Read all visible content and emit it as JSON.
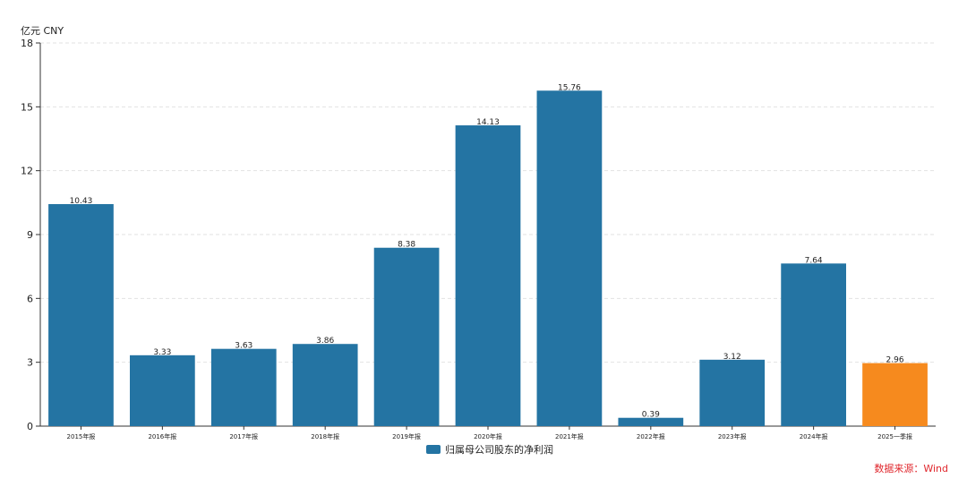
{
  "chart_data": {
    "type": "bar",
    "ylabel": "亿元  CNY",
    "ylim": [
      0,
      18
    ],
    "yticks": [
      0,
      3,
      6,
      9,
      12,
      15,
      18
    ],
    "grid": true,
    "legend_placement": "bottom-center",
    "categories": [
      "2015年报",
      "2016年报",
      "2017年报",
      "2018年报",
      "2019年报",
      "2020年报",
      "2021年报",
      "2022年报",
      "2023年报",
      "2024年报",
      "2025一季报"
    ],
    "series": [
      {
        "name": "归属母公司股东的净利润",
        "color": "#2474a3",
        "values": [
          10.43,
          3.33,
          3.63,
          3.86,
          8.38,
          14.13,
          15.76,
          0.39,
          3.12,
          7.64,
          2.96
        ]
      }
    ],
    "highlight": {
      "category": "2025一季报",
      "color": "#f68a1e"
    },
    "data_labels": [
      "10.43",
      "3.33",
      "3.63",
      "3.86",
      "8.38",
      "14.13",
      "15.76",
      "0.39",
      "3.12",
      "7.64",
      "2.96"
    ]
  },
  "source_note": {
    "text": "数据来源：Wind",
    "color": "#e0282e"
  }
}
